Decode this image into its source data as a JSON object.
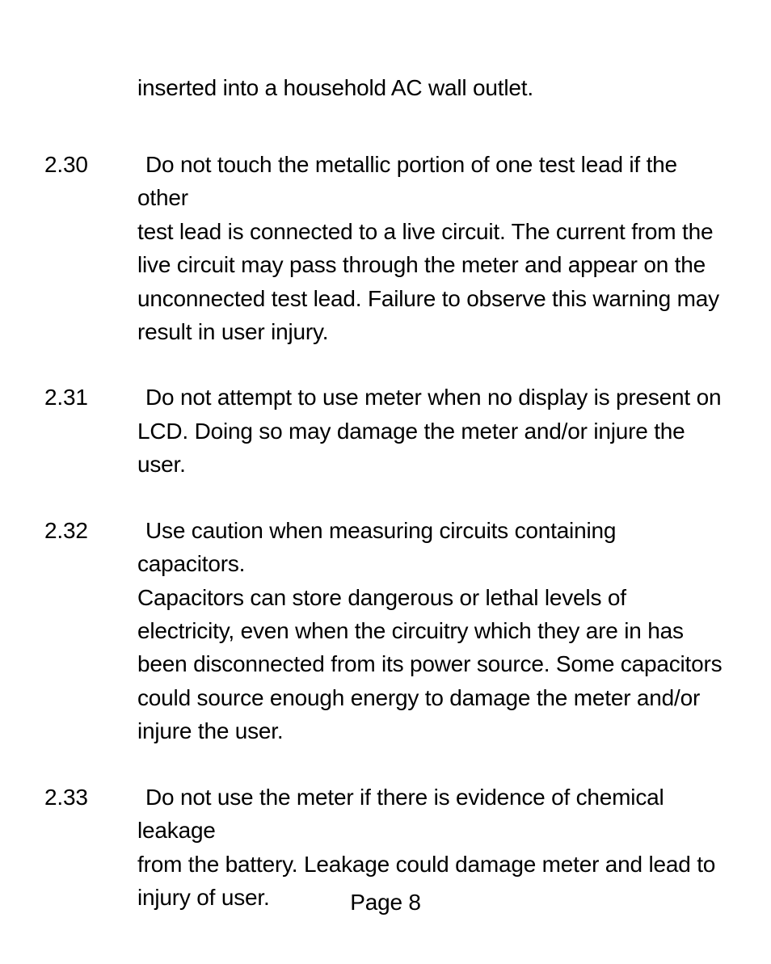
{
  "intro": "inserted into a household AC wall outlet.",
  "items": [
    {
      "num": "2.30",
      "first": "Do not touch the metallic portion of one test lead if the other",
      "rest": " test lead is connected to a live circuit. The current from the live circuit may pass through the meter and appear on the unconnected test lead. Failure to observe this warning may result in user injury."
    },
    {
      "num": "2.31",
      "first": "Do not attempt to use meter when no display is present on",
      "rest": "LCD. Doing so may damage the meter and/or injure the user."
    },
    {
      "num": "2.32",
      "first": "Use caution when measuring circuits containing capacitors.",
      "rest": " Capacitors can store dangerous or lethal levels of electricity, even when the circuitry which they are in has been disconnected from its power source. Some capacitors could source enough energy to damage the meter and/or injure the user."
    },
    {
      "num": "2.33",
      "first": "Do not use the meter if there is evidence of chemical leakage",
      "rest": " from the battery. Leakage could damage meter and lead to injury of user."
    }
  ],
  "footer": "Page 8"
}
